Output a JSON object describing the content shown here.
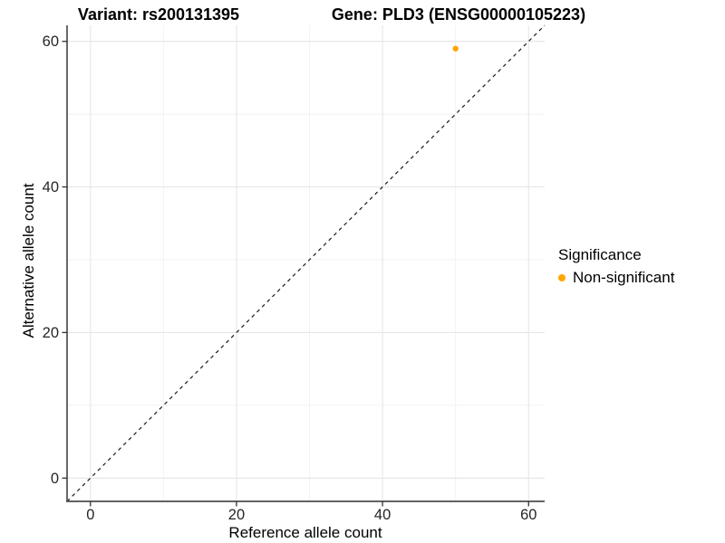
{
  "header": {
    "variant_title": "Variant: rs200131395",
    "gene_title": "Gene: PLD3 (ENSG00000105223)"
  },
  "axes": {
    "x_label": "Reference allele count",
    "y_label": "Alternative allele count"
  },
  "legend": {
    "title": "Significance",
    "entries": [
      {
        "label": "Non-significant",
        "color": "#FFA500",
        "marker": "circle-icon"
      }
    ],
    "position": "right"
  },
  "colors": {
    "point": "#FFA500",
    "axis_line": "#4D4D4D",
    "tick_mark": "#333333",
    "grid_major": "#E6E6E6",
    "grid_minor": "#F1F1F1",
    "dashed_line": "#1A1A1A",
    "tick_label": "#262626",
    "background": "#FFFFFF"
  },
  "chart_data": {
    "type": "scatter",
    "title": "Variant: rs200131395 — Gene: PLD3 (ENSG00000105223)",
    "xlabel": "Reference allele count",
    "ylabel": "Alternative allele count",
    "xlim": [
      -3.2,
      62.2
    ],
    "ylim": [
      -3.2,
      62.2
    ],
    "xticks": [
      0,
      20,
      40,
      60
    ],
    "yticks": [
      0,
      20,
      40,
      60
    ],
    "minor_xticks": [
      10,
      30,
      50
    ],
    "minor_yticks": [
      10,
      30,
      50
    ],
    "grid": "major+minor",
    "legend_position": "right",
    "series": [
      {
        "name": "Non-significant",
        "color": "#FFA500",
        "points": [
          {
            "x": 50,
            "y": 59
          }
        ]
      }
    ],
    "identity_line": {
      "slope": 1,
      "intercept": 0,
      "style": "dashed",
      "color": "#1A1A1A"
    }
  }
}
